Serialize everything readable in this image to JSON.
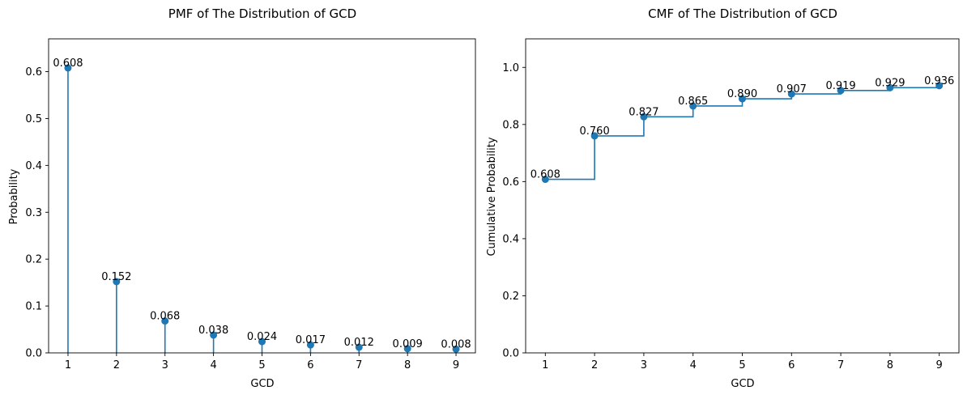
{
  "chart_data": [
    {
      "type": "stem",
      "title": "PMF of The Distribution of GCD",
      "xlabel": "GCD",
      "ylabel": "Probability",
      "x": [
        1,
        2,
        3,
        4,
        5,
        6,
        7,
        8,
        9
      ],
      "values": [
        0.608,
        0.152,
        0.068,
        0.038,
        0.024,
        0.017,
        0.012,
        0.009,
        0.008
      ],
      "data_labels": [
        "0.608",
        "0.152",
        "0.068",
        "0.038",
        "0.024",
        "0.017",
        "0.012",
        "0.009",
        "0.008"
      ],
      "xlim": [
        0.6,
        9.4
      ],
      "ylim": [
        0,
        0.67
      ],
      "yticks": [
        0.0,
        0.1,
        0.2,
        0.3,
        0.4,
        0.5,
        0.6
      ],
      "ytick_labels": [
        "0.0",
        "0.1",
        "0.2",
        "0.3",
        "0.4",
        "0.5",
        "0.6"
      ],
      "xticks": [
        1,
        2,
        3,
        4,
        5,
        6,
        7,
        8,
        9
      ],
      "color": "#1f77b4",
      "grid": false
    },
    {
      "type": "step",
      "title": "CMF of The Distribution of GCD",
      "xlabel": "GCD",
      "ylabel": "Cumulative Probability",
      "x": [
        1,
        2,
        3,
        4,
        5,
        6,
        7,
        8,
        9
      ],
      "values": [
        0.608,
        0.76,
        0.827,
        0.865,
        0.89,
        0.907,
        0.919,
        0.929,
        0.936
      ],
      "data_labels": [
        "0.608",
        "0.760",
        "0.827",
        "0.865",
        "0.890",
        "0.907",
        "0.919",
        "0.929",
        "0.936"
      ],
      "xlim": [
        0.6,
        9.4
      ],
      "ylim": [
        0,
        1.1
      ],
      "yticks": [
        0.0,
        0.2,
        0.4,
        0.6,
        0.8,
        1.0
      ],
      "ytick_labels": [
        "0.0",
        "0.2",
        "0.4",
        "0.6",
        "0.8",
        "1.0"
      ],
      "xticks": [
        1,
        2,
        3,
        4,
        5,
        6,
        7,
        8,
        9
      ],
      "color": "#1f77b4",
      "grid": false
    }
  ]
}
